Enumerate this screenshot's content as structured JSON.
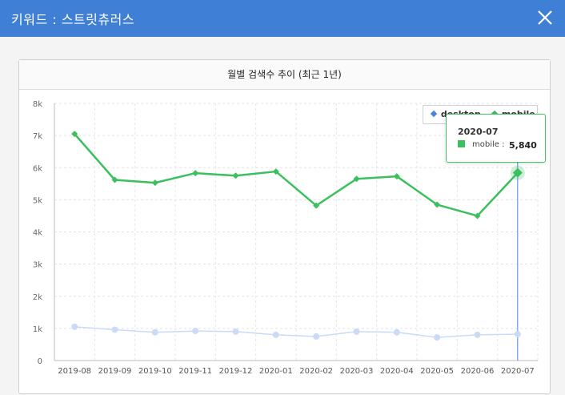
{
  "window": {
    "title": "키워드 : 스트릿츄러스",
    "close_icon": "close-icon"
  },
  "panel": {
    "title": "월별 검색수 추이 (최근 1년)"
  },
  "legend": {
    "desktop": "desktop",
    "mobile": "mobile"
  },
  "tooltip": {
    "date": "2020-07",
    "series": "mobile",
    "sep": ":",
    "value": "5,840"
  },
  "colors": {
    "header": "#3f7fd6",
    "mobile": "#3cc05f",
    "desktop": "#c9dbf5",
    "crosshair": "#4a84e0"
  },
  "chart_data": {
    "type": "line",
    "title": "월별 검색수 추이 (최근 1년)",
    "categories": [
      "2019-08",
      "2019-09",
      "2019-10",
      "2019-11",
      "2019-12",
      "2020-01",
      "2020-02",
      "2020-03",
      "2020-04",
      "2020-05",
      "2020-06",
      "2020-07"
    ],
    "series": [
      {
        "name": "desktop",
        "values": [
          1050,
          960,
          880,
          920,
          900,
          800,
          750,
          900,
          880,
          720,
          800,
          820
        ]
      },
      {
        "name": "mobile",
        "values": [
          7050,
          5620,
          5530,
          5830,
          5750,
          5880,
          4820,
          5650,
          5730,
          4850,
          4500,
          5840
        ]
      }
    ],
    "ylim": [
      0,
      8000
    ],
    "yticks": [
      "0",
      "1k",
      "2k",
      "3k",
      "4k",
      "5k",
      "6k",
      "7k",
      "8k"
    ],
    "grid": true,
    "legend": "top-right",
    "highlighted": {
      "series": "mobile",
      "category": "2020-07"
    }
  }
}
